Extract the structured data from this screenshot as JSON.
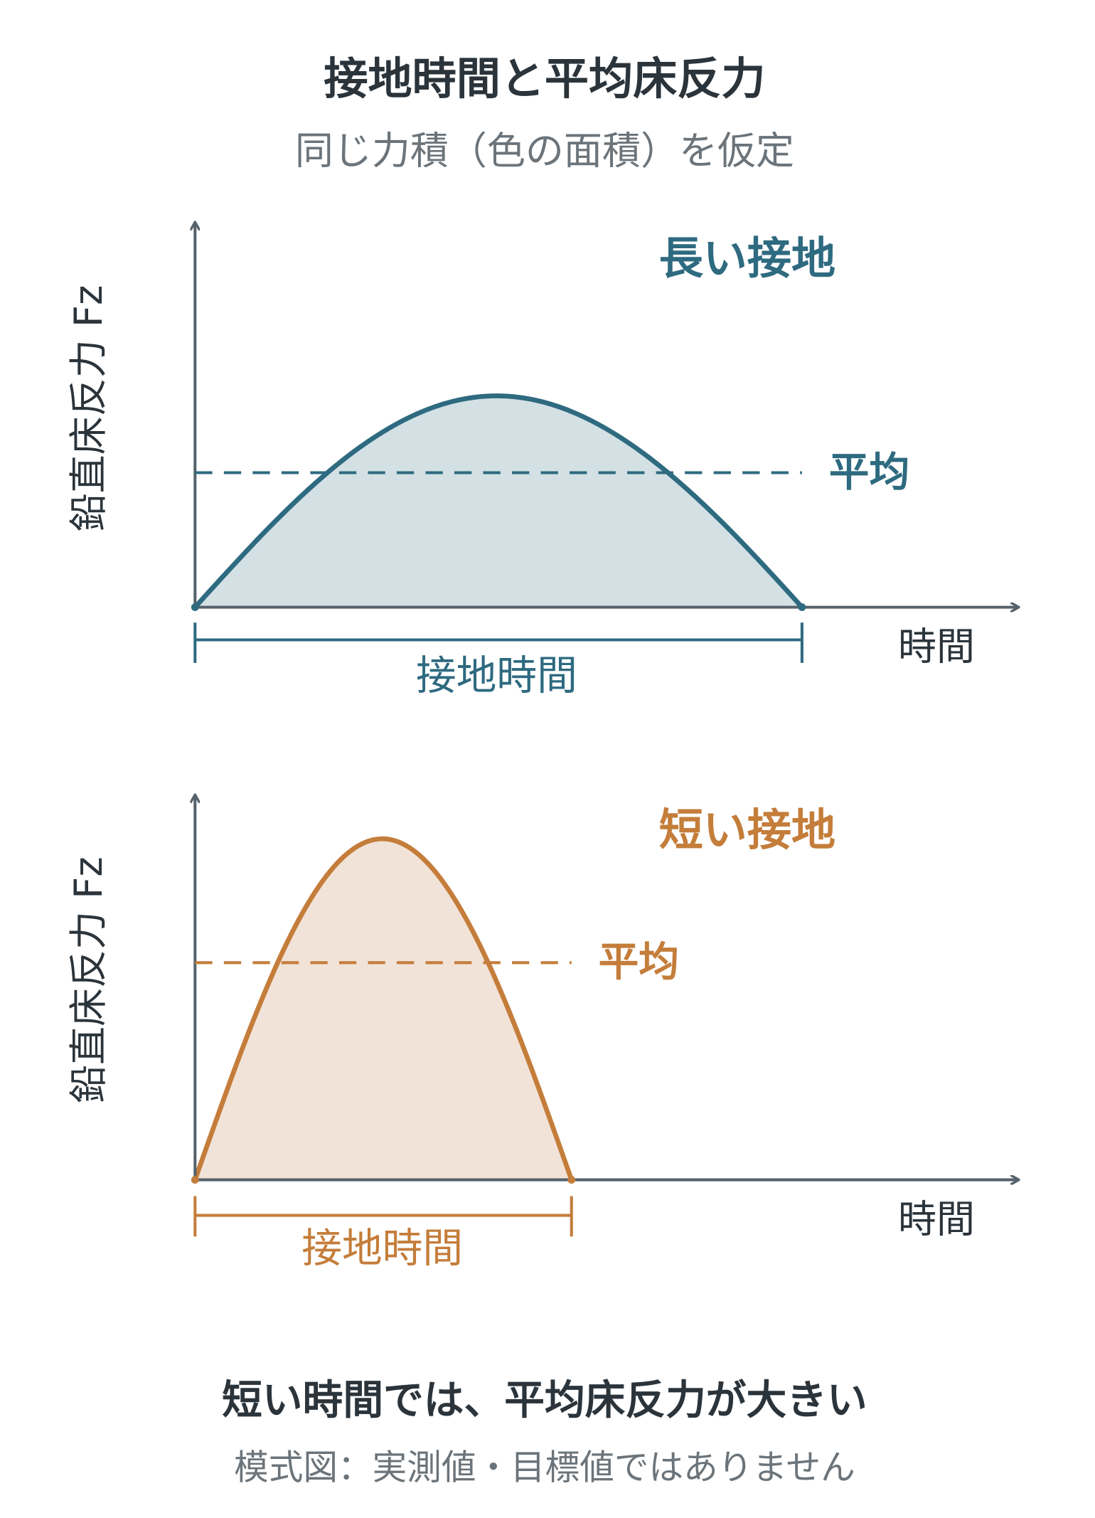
{
  "header": {
    "title": "接地時間と平均床反力",
    "subtitle": "同じ力積（色の面積）を仮定"
  },
  "panels": [
    {
      "label": "長い接地",
      "average_label": "平均",
      "duration_label": "接地時間",
      "x_axis_label": "時間",
      "y_axis_label": "鉛直床反力 Fz"
    },
    {
      "label": "短い接地",
      "average_label": "平均",
      "duration_label": "接地時間",
      "x_axis_label": "時間",
      "y_axis_label": "鉛直床反力 Fz"
    }
  ],
  "footer": {
    "conclusion": "短い時間では、平均床反力が大きい",
    "note": "模式図：実測値・目標値ではありません"
  }
}
